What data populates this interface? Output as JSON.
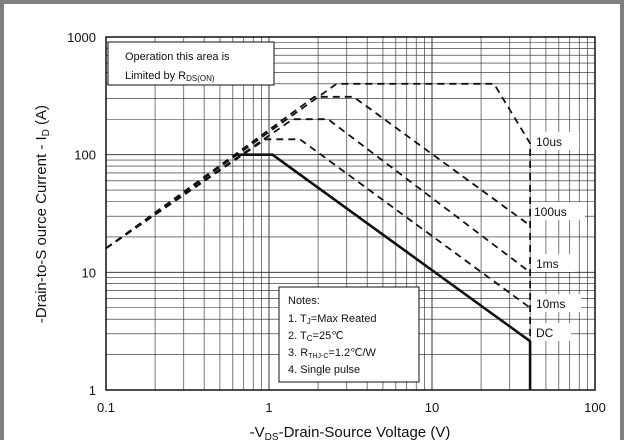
{
  "chart_data": {
    "type": "line",
    "title": "",
    "xlabel_prefix": "-V",
    "xlabel_sub": "DS",
    "xlabel_rest": "-Drain-Source Voltage (V)",
    "ylabel_main": "-Drain-to-S ource Current - I",
    "ylabel_sub": "D",
    "ylabel_unit": " (A)",
    "x_scale": "log",
    "y_scale": "log",
    "xlim": [
      0.1,
      100
    ],
    "ylim": [
      1,
      1000
    ],
    "x_ticks": [
      "0.1",
      "1",
      "10",
      "100"
    ],
    "y_ticks": [
      "1",
      "10",
      "100",
      "1000"
    ],
    "grid": true,
    "rds_note": {
      "line1": "Operation this area is",
      "line2_main": "Limited by R",
      "line2_sub": "DS(ON)"
    },
    "notes": {
      "title": "Notes:",
      "n1_a": "1. T",
      "n1_sub": "J",
      "n1_b": "=Max Reated",
      "n2_a": "2. T",
      "n2_sub": "C",
      "n2_b": "=25℃",
      "n3_a": "3. R",
      "n3_sub": "THJ-C",
      "n3_b": "=1.2℃/W",
      "n4": "4. Single pulse"
    },
    "series": [
      {
        "name": "10us",
        "style": "dashed",
        "x": [
          0.1,
          2.6,
          24,
          40,
          40
        ],
        "y": [
          16,
          400,
          400,
          125,
          1
        ]
      },
      {
        "name": "100us",
        "style": "dashed",
        "x": [
          0.1,
          1.9,
          3.3,
          40
        ],
        "y": [
          16,
          310,
          310,
          25
        ]
      },
      {
        "name": "1ms",
        "style": "dashed",
        "x": [
          0.1,
          1.4,
          2.3,
          40
        ],
        "y": [
          16,
          200,
          200,
          10
        ]
      },
      {
        "name": "10ms",
        "style": "dashed",
        "x": [
          0.1,
          0.95,
          1.55,
          40
        ],
        "y": [
          16,
          135,
          135,
          5
        ]
      },
      {
        "name": "DC",
        "style": "solid",
        "x": [
          0.62,
          1.05,
          40,
          40
        ],
        "y": [
          100,
          100,
          2.6,
          1
        ]
      }
    ],
    "labels": [
      "10us",
      "100us",
      "1ms",
      "10ms",
      "DC"
    ]
  }
}
